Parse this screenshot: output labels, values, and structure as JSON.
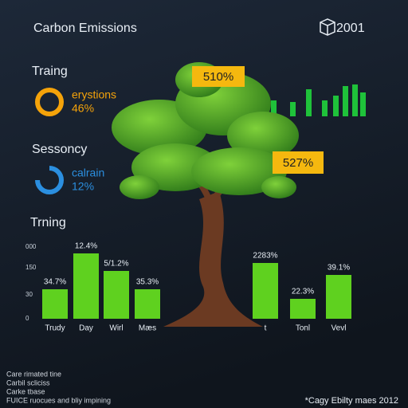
{
  "header": {
    "title": "Carbon Emissions",
    "year": "2001"
  },
  "panels": [
    {
      "title": "Traing",
      "ring_label": "erystions",
      "ring_value": "46%"
    },
    {
      "title": "Sessoncy",
      "ring_label": "calrain",
      "ring_value": "12%"
    }
  ],
  "callouts": [
    "510%",
    "527%"
  ],
  "chart_data": {
    "type": "bar",
    "title": "Trning",
    "categories": [
      "Trudy",
      "Day",
      "Wirl",
      "Mæs",
      "t",
      "Tonl",
      "Vevl"
    ],
    "values": [
      37,
      82,
      60,
      37,
      70,
      25,
      55
    ],
    "bar_texts": [
      "34.7%",
      "12.4%",
      "5/1.2%",
      "35.3%",
      "2283%",
      "22.3%",
      "39.1%"
    ],
    "y_axis_texts": [
      "000",
      "150",
      "30",
      "0"
    ],
    "ylim": [
      0,
      100
    ],
    "color": "#5fd11f"
  },
  "footnotes": [
    "Care rimated tine",
    "Carbil scliciss",
    "Carke tbase",
    "FUICE ruocues and bliy impining"
  ],
  "source": "*Cagy Ebilty maes 2012"
}
